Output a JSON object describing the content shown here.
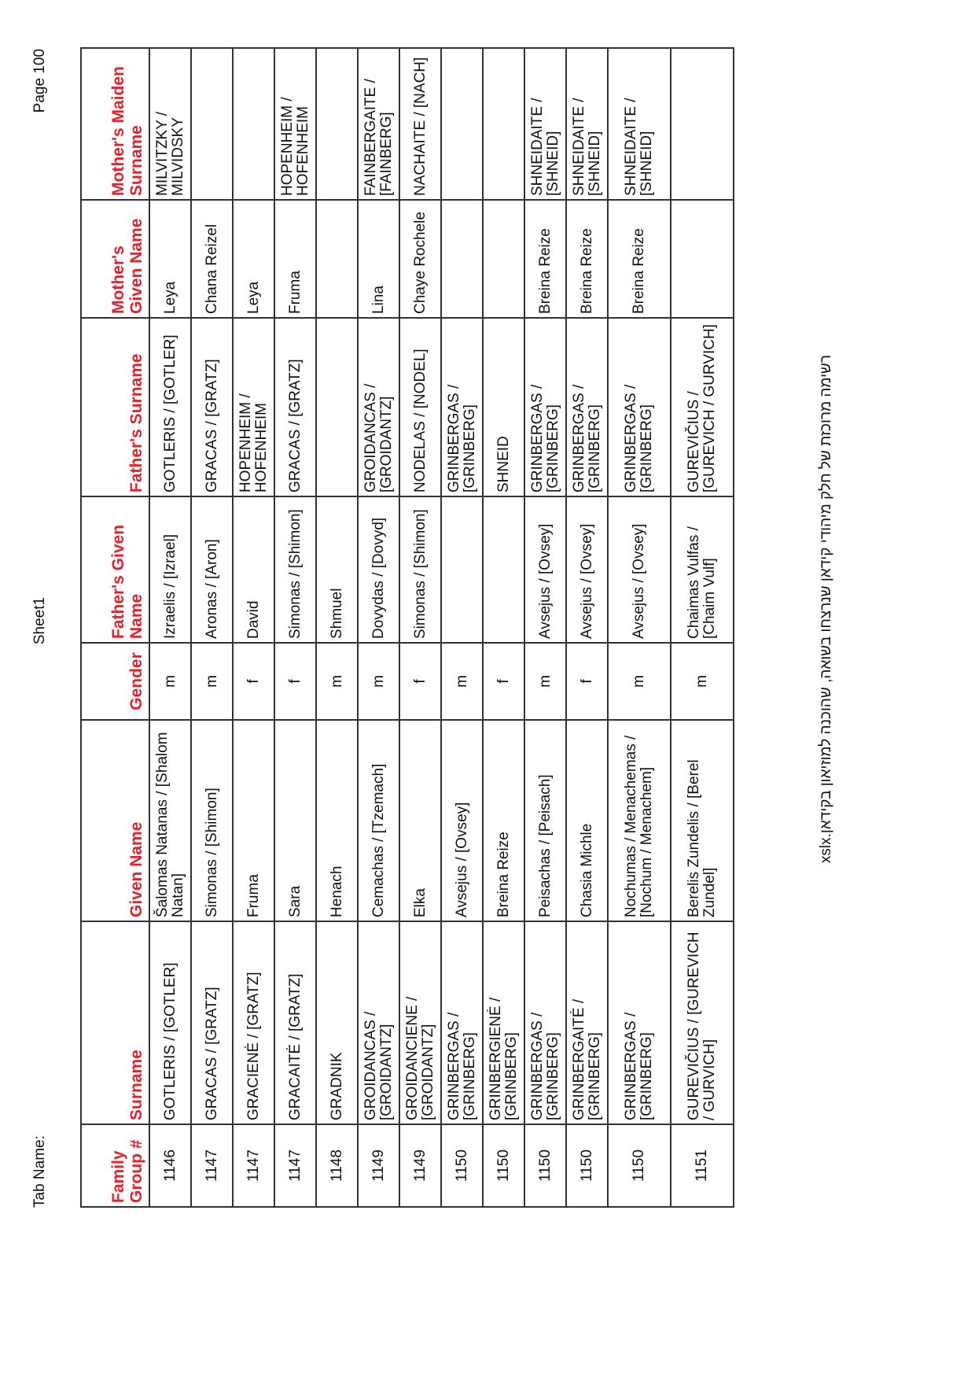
{
  "header": {
    "tab_name": "Tab Name:",
    "sheet": "Sheet1",
    "page": "Page 100"
  },
  "colors": {
    "header_text": "#e8202a"
  },
  "table": {
    "columns": [
      "Family Group #",
      "Surname",
      "Given Name",
      "Gender",
      "Father's Given Name",
      "Father's Surname",
      "Mother's Given Name",
      "Mother's Maiden Surname"
    ],
    "rows": [
      [
        "1146",
        "GOTLERIS / [GOTLER]",
        "Šalomas Natanas / [Shalom Natan]",
        "m",
        "Izraelis / [Izrael]",
        "GOTLERIS / [GOTLER]",
        "Leya",
        "MILVITZKY / MILVIDSKY"
      ],
      [
        "1147",
        "GRACAS / [GRATZ]",
        "Simonas / [Shimon]",
        "m",
        "Aronas / [Aron]",
        "GRACAS / [GRATZ]",
        "Chana Reizel",
        ""
      ],
      [
        "1147",
        "GRACIENĖ / [GRATZ]",
        "Fruma",
        "f",
        "David",
        "HOPENHEIM / HOFENHEIM",
        "Leya",
        ""
      ],
      [
        "1147",
        "GRACAITĖ / [GRATZ]",
        "Sara",
        "f",
        "Simonas / [Shimon]",
        "GRACAS / [GRATZ]",
        "Fruma",
        "HOPENHEIM / HOFENHEIM"
      ],
      [
        "1148",
        "GRADNIK",
        "Henach",
        "m",
        "Shmuel",
        "",
        "",
        ""
      ],
      [
        "1149",
        "GROIDANCAS / [GROIDANTZ]",
        "Cemachas / [Tzemach]",
        "m",
        "Dovydas / [Dovyd]",
        "GROIDANCAS / [GROIDANTZ]",
        "Lina",
        "FAINBERGAITE / [FAINBERG]"
      ],
      [
        "1149",
        "GROIDANCIENE / [GROIDANTZ]",
        "Elka",
        "f",
        "Simonas / [Shimon]",
        "NODELAS / [NODEL]",
        "Chaye Rochele",
        "NACHAITE / [NACH]"
      ],
      [
        "1150",
        "GRINBERGAS / [GRINBERG]",
        "Avsejus / [Ovsey]",
        "m",
        "",
        "GRINBERGAS / [GRINBERG]",
        "",
        ""
      ],
      [
        "1150",
        "GRINBERGIENĖ / [GRINBERG]",
        "Breina Reize",
        "f",
        "",
        "SHNEID",
        "",
        ""
      ],
      [
        "1150",
        "GRINBERGAS / [GRINBERG]",
        "Peisachas / [Peisach]",
        "m",
        "Avsejus / [Ovsey]",
        "GRINBERGAS / [GRINBERG]",
        "Breina Reize",
        "SHNEIDAITE / [SHNEID]"
      ],
      [
        "1150",
        "GRINBERGAITĖ / [GRINBERG]",
        "Chasia Michle",
        "f",
        "Avsejus / [Ovsey]",
        "GRINBERGAS / [GRINBERG]",
        "Breina Reize",
        "SHNEIDAITE / [SHNEID]"
      ],
      [
        "1150",
        "GRINBERGAS / [GRINBERG]",
        "Nochumas / Menachemas / [Nochum / Menachem]",
        "m",
        "Avsejus / [Ovsey]",
        "GRINBERGAS / [GRINBERG]",
        "Breina Reize",
        "SHNEIDAITE / [SHNEID]"
      ],
      [
        "1151",
        "GUREVIČIUS / [GUREVICH / GURVICH]",
        "Berelis Zundelis / [Berel Zundel]",
        "m",
        "Chaimas Vulfas / [Chaim Vulf]",
        "GUREVIČIUS / [GUREVICH / GURVICH]",
        "",
        ""
      ]
    ]
  },
  "footer": "רשימה מרוכזת של  חלק מיהודי קידאן שנרצחו בשואה, שהוכנה למוזיאון בקידאן.xslx"
}
